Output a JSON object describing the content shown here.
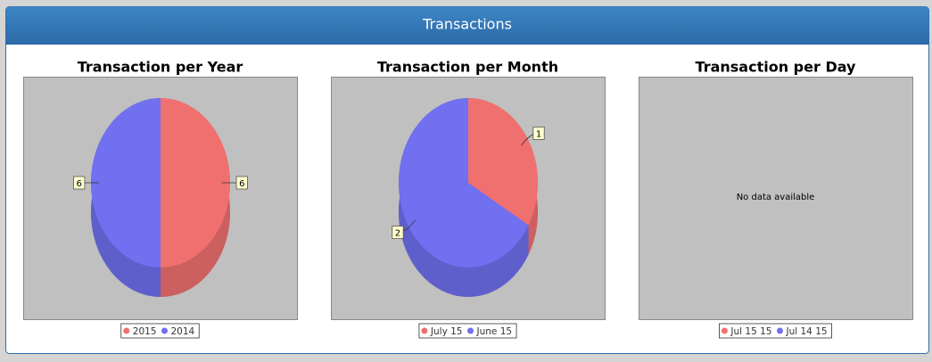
{
  "panel": {
    "title": "Transactions"
  },
  "chart_data": [
    {
      "type": "pie",
      "title": "Transaction per Year",
      "categories": [
        "2015",
        "2014"
      ],
      "values": [
        6,
        6
      ],
      "colors": [
        "#f07070",
        "#7070f0"
      ]
    },
    {
      "type": "pie",
      "title": "Transaction per Month",
      "categories": [
        "July 15",
        "June 15"
      ],
      "values": [
        1,
        2
      ],
      "colors": [
        "#f07070",
        "#7070f0"
      ]
    },
    {
      "type": "pie",
      "title": "Transaction per Day",
      "categories": [
        "Jul 15 15",
        "Jul 14 15"
      ],
      "values": [
        null,
        null
      ],
      "colors": [
        "#f07070",
        "#7070f0"
      ],
      "message": "No data available"
    }
  ]
}
